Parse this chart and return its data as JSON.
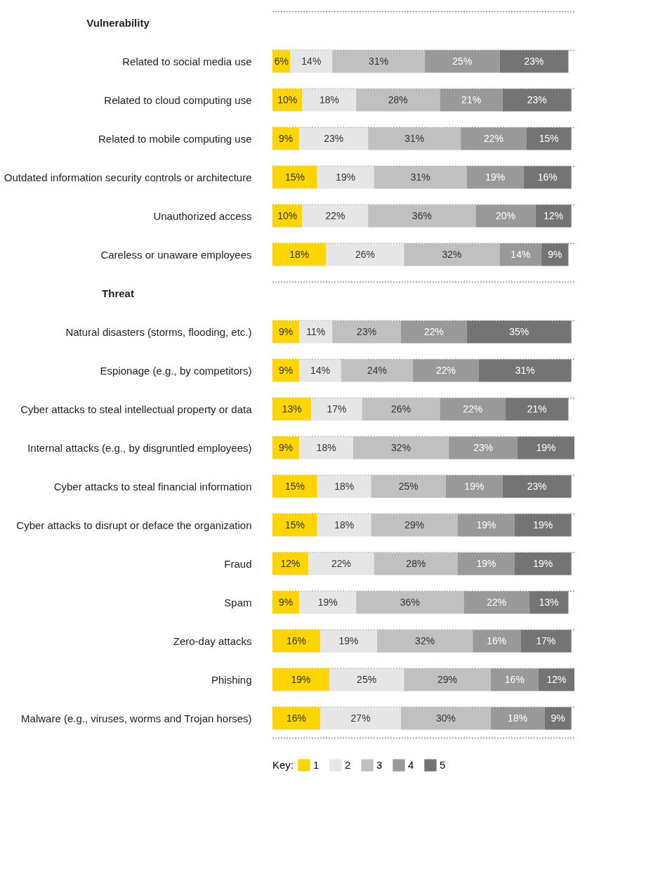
{
  "chart_data": {
    "type": "bar",
    "orientation": "horizontal",
    "stacked": true,
    "annotations": [
      "Vulnerability",
      "Threat"
    ],
    "categories": [
      null,
      "Related to social media use",
      "Related to cloud computing use",
      "Related to mobile computing use",
      "Outdated information security controls or architecture",
      "Unauthorized access",
      "Careless or unaware employees",
      null,
      "Natural disasters (storms, flooding, etc.)",
      "Espionage (e.g., by competitors)",
      "Cyber attacks to steal intellectual property or data",
      "Internal attacks (e.g., by disgruntled employees)",
      "Cyber attacks to steal financial information",
      "Cyber attacks to disrupt or deface the organization",
      "Fraud",
      "Spam",
      "Zero-day attacks",
      "Phishing",
      "Malware (e.g., viruses, worms and Trojan horses)"
    ],
    "series": [
      {
        "name": "1",
        "color": "#ffd500",
        "values": [
          null,
          6,
          10,
          9,
          15,
          10,
          18,
          null,
          9,
          9,
          13,
          9,
          15,
          15,
          12,
          9,
          16,
          19,
          16
        ],
        "value_labels": [
          null,
          "6%",
          "10%",
          "9%",
          "15%",
          "10%",
          "18%",
          null,
          "9%",
          "9%",
          "13%",
          "9%",
          "15%",
          "15%",
          "12%",
          "9%",
          "16%",
          "19%",
          "16%"
        ]
      },
      {
        "name": "2",
        "color": "#e6e6e6",
        "values": [
          null,
          14,
          18,
          23,
          19,
          22,
          26,
          null,
          11,
          14,
          17,
          18,
          18,
          18,
          22,
          19,
          19,
          25,
          27
        ],
        "value_labels": [
          null,
          "14%",
          "18%",
          "23%",
          "19%",
          "22%",
          "26%",
          null,
          "11%",
          "14%",
          "17%",
          "18%",
          "18%",
          "18%",
          "22%",
          "19%",
          "19%",
          "25%",
          "27%"
        ]
      },
      {
        "name": "3",
        "color": "#c0c0c0",
        "values": [
          null,
          31,
          28,
          31,
          31,
          36,
          32,
          null,
          23,
          24,
          26,
          32,
          25,
          29,
          28,
          36,
          32,
          29,
          30
        ],
        "value_labels": [
          null,
          "31%",
          "28%",
          "31%",
          "31%",
          "36%",
          "32%",
          null,
          "23%",
          "24%",
          "26%",
          "32%",
          "25%",
          "29%",
          "28%",
          "36%",
          "32%",
          "29%",
          "30%"
        ]
      },
      {
        "name": "4",
        "color": "#999999",
        "values": [
          null,
          25,
          21,
          22,
          19,
          20,
          14,
          null,
          22,
          22,
          22,
          23,
          19,
          19,
          19,
          22,
          16,
          16,
          18
        ],
        "value_labels": [
          null,
          "25%",
          "21%",
          "22%",
          "19%",
          "20%",
          "14%",
          null,
          "22%",
          "22%",
          "22%",
          "23%",
          "19%",
          "19%",
          "19%",
          "22%",
          "16%",
          "16%",
          "18%"
        ]
      },
      {
        "name": "5",
        "color": "#747474",
        "values": [
          null,
          23,
          23,
          15,
          16,
          12,
          9,
          null,
          35,
          31,
          21,
          19,
          23,
          19,
          19,
          13,
          17,
          12,
          9
        ],
        "value_labels": [
          null,
          "23%",
          "23%",
          "15%",
          "16%",
          "12%",
          "9%",
          null,
          "35%",
          "31%",
          "21%",
          "19%",
          "23%",
          "19%",
          "19%",
          "13%",
          "17%",
          "12%",
          "9%"
        ]
      }
    ],
    "xlim": [
      0,
      101
    ],
    "tick_labels": "y",
    "grid": "y",
    "legend": "bottom",
    "legend_title": "Key:"
  }
}
